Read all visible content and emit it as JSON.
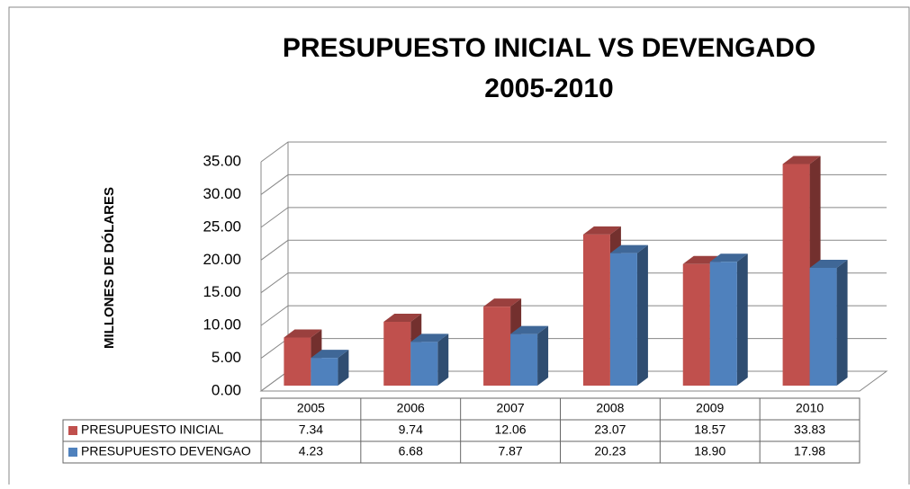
{
  "chart_data": {
    "type": "bar3d",
    "title": "PRESUPUESTO INICIAL VS DEVENGADO",
    "subtitle": "2005-2010",
    "y_label": "MILLONES DE DÓLARES",
    "categories": [
      "2005",
      "2006",
      "2007",
      "2008",
      "2009",
      "2010"
    ],
    "series": [
      {
        "name": "PRESUPUESTO INICIAL",
        "color": "#c0504d",
        "values": [
          7.34,
          9.74,
          12.06,
          23.07,
          18.57,
          33.83
        ],
        "value_labels": [
          "7.34",
          "9.74",
          "12.06",
          "23.07",
          "18.57",
          "33.83"
        ]
      },
      {
        "name": "PRESUPUESTO DEVENGAO",
        "color": "#4f81bd",
        "values": [
          4.23,
          6.68,
          7.87,
          20.23,
          18.9,
          17.98
        ],
        "value_labels": [
          "4.23",
          "6.68",
          "7.87",
          "20.23",
          "18.90",
          "17.98"
        ]
      }
    ],
    "ylim": [
      0,
      35
    ],
    "yticks": [
      {
        "value": 0,
        "label": "0.00"
      },
      {
        "value": 5,
        "label": "5.00"
      },
      {
        "value": 10,
        "label": "10.00"
      },
      {
        "value": 15,
        "label": "15.00"
      },
      {
        "value": 20,
        "label": "20.00"
      },
      {
        "value": 25,
        "label": "25.00"
      },
      {
        "value": 30,
        "label": "30.00"
      },
      {
        "value": 35,
        "label": "35.00"
      }
    ],
    "grid": true,
    "legend": "table"
  }
}
